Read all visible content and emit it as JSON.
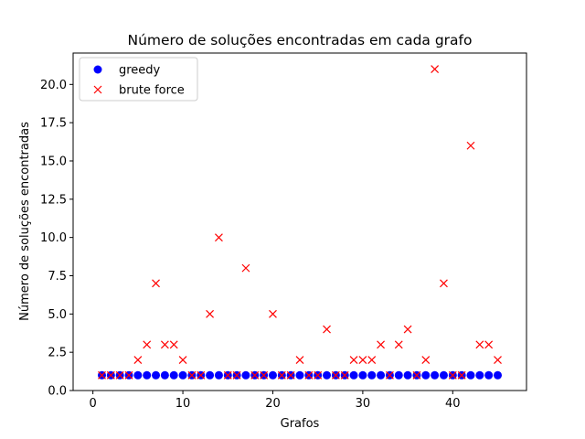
{
  "chart_data": {
    "type": "scatter",
    "title": "Número de soluções encontradas em cada grafo",
    "xlabel": "Grafos",
    "ylabel": "Número de soluções encontradas",
    "xlim": [
      -2.2,
      48.2
    ],
    "ylim": [
      0,
      22.05
    ],
    "xticks": [
      0,
      10,
      20,
      30,
      40
    ],
    "yticks": [
      0.0,
      2.5,
      5.0,
      7.5,
      10.0,
      12.5,
      15.0,
      17.5,
      20.0
    ],
    "xtick_labels": [
      "0",
      "10",
      "20",
      "30",
      "40"
    ],
    "ytick_labels": [
      "0.0",
      "2.5",
      "5.0",
      "7.5",
      "10.0",
      "12.5",
      "15.0",
      "17.5",
      "20.0"
    ],
    "grid": false,
    "legend_position": "top-left",
    "x": [
      1,
      2,
      3,
      4,
      5,
      6,
      7,
      8,
      9,
      10,
      11,
      12,
      13,
      14,
      15,
      16,
      17,
      18,
      19,
      20,
      21,
      22,
      23,
      24,
      25,
      26,
      27,
      28,
      29,
      30,
      31,
      32,
      33,
      34,
      35,
      36,
      37,
      38,
      39,
      40,
      41,
      42,
      43,
      44,
      45
    ],
    "series": [
      {
        "name": "greedy",
        "marker": "circle",
        "color": "#0000ff",
        "values": [
          1,
          1,
          1,
          1,
          1,
          1,
          1,
          1,
          1,
          1,
          1,
          1,
          1,
          1,
          1,
          1,
          1,
          1,
          1,
          1,
          1,
          1,
          1,
          1,
          1,
          1,
          1,
          1,
          1,
          1,
          1,
          1,
          1,
          1,
          1,
          1,
          1,
          1,
          1,
          1,
          1,
          1,
          1,
          1,
          1
        ]
      },
      {
        "name": "brute force",
        "marker": "x",
        "color": "#ff0000",
        "values": [
          1,
          1,
          1,
          1,
          2,
          3,
          7,
          3,
          3,
          2,
          1,
          1,
          5,
          10,
          1,
          1,
          8,
          1,
          1,
          5,
          1,
          1,
          2,
          1,
          1,
          4,
          1,
          1,
          2,
          2,
          2,
          3,
          1,
          3,
          4,
          1,
          2,
          21,
          7,
          1,
          1,
          16,
          3,
          3,
          2
        ]
      }
    ]
  }
}
